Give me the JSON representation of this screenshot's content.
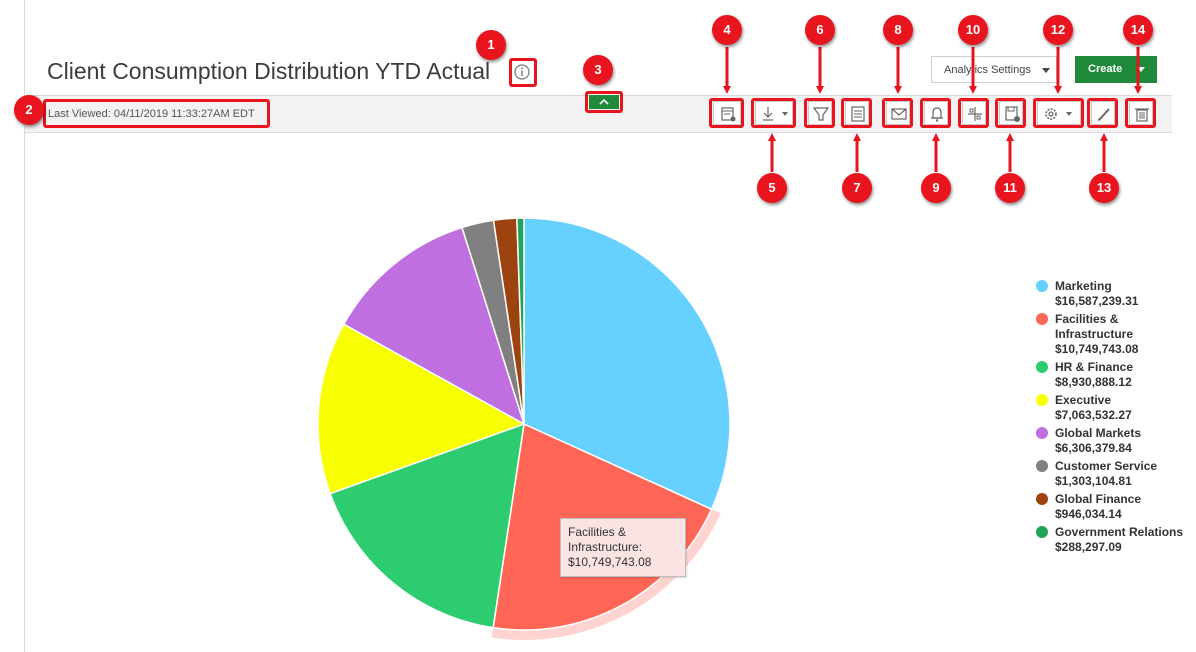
{
  "header": {
    "title": "Client Consumption Distribution YTD Actual",
    "last_viewed": "Last Viewed: 04/11/2019 11:33:27AM EDT",
    "analytics_settings_label": "Analytics Settings",
    "create_label": "Create"
  },
  "toolbar": {
    "icons": [
      "view-data-icon",
      "download-icon",
      "filter-icon",
      "notes-icon",
      "email-icon",
      "alert-bell-icon",
      "link-icon",
      "save-icon",
      "settings-gear-icon",
      "edit-pencil-icon",
      "delete-trash-icon"
    ]
  },
  "callouts": [
    "1",
    "2",
    "3",
    "4",
    "5",
    "6",
    "7",
    "8",
    "9",
    "10",
    "11",
    "12",
    "13",
    "14"
  ],
  "tooltip": {
    "label": "Facilities & Infrastructure:",
    "value": "$10,749,743.08"
  },
  "chart_data": {
    "type": "pie",
    "categories": [
      "Marketing",
      "Facilities & Infrastructure",
      "HR & Finance",
      "Executive",
      "Global Markets",
      "Customer Service",
      "Global Finance",
      "Government Relations"
    ],
    "values": [
      16587239.31,
      10749743.08,
      8930888.12,
      7063532.27,
      6306379.84,
      1303104.81,
      946034.14,
      288297.09
    ],
    "value_labels": [
      "$16,587,239.31",
      "$10,749,743.08",
      "$8,930,888.12",
      "$7,063,532.27",
      "$6,306,379.84",
      "$1,303,104.81",
      "$946,034.14",
      "$288,297.09"
    ],
    "colors": [
      "#66d1ff",
      "#ff6655",
      "#2ecc71",
      "#f8ff00",
      "#bf6fe0",
      "#808080",
      "#9c4310",
      "#22a35a"
    ],
    "highlighted": "Facilities & Infrastructure",
    "legend_position": "right"
  },
  "colors": {
    "accent_green": "#1e8a3a",
    "callout_red": "#e8141e"
  }
}
